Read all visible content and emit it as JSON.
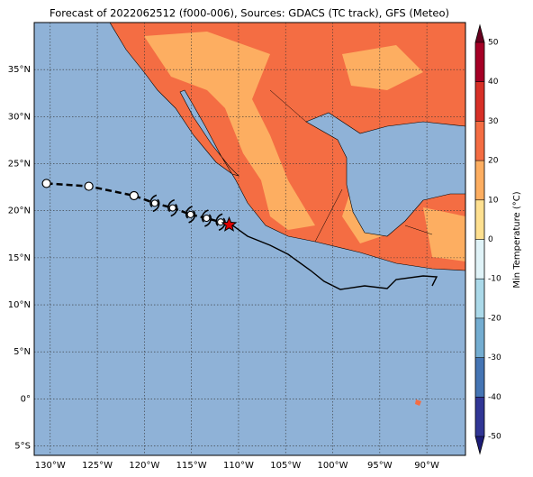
{
  "map": {
    "title": "Forecast of 2022062512 (f000-006), Sources: GDACS (TC track), GFS (Meteo)",
    "xlim": [
      -131.7,
      -85.9
    ],
    "ylim": [
      -6,
      40
    ],
    "xticks": [
      {
        "value": -130,
        "label": "130°W"
      },
      {
        "value": -125,
        "label": "125°W"
      },
      {
        "value": -120,
        "label": "120°W"
      },
      {
        "value": -115,
        "label": "115°W"
      },
      {
        "value": -110,
        "label": "110°W"
      },
      {
        "value": -105,
        "label": "105°W"
      },
      {
        "value": -100,
        "label": "100°W"
      },
      {
        "value": -95,
        "label": "95°W"
      },
      {
        "value": -90,
        "label": "90°W"
      }
    ],
    "yticks": [
      {
        "value": 35,
        "label": "35°N"
      },
      {
        "value": 30,
        "label": "30°N"
      },
      {
        "value": 25,
        "label": "25°N"
      },
      {
        "value": 20,
        "label": "20°N"
      },
      {
        "value": 15,
        "label": "15°N"
      },
      {
        "value": 10,
        "label": "10°N"
      },
      {
        "value": 5,
        "label": "5°N"
      },
      {
        "value": 0,
        "label": "0°"
      },
      {
        "value": -5,
        "label": "5°S"
      }
    ],
    "grid": true,
    "past_track": {
      "lon": [
        -130.4,
        -125.9,
        -121.1
      ],
      "lat": [
        22.9,
        22.6,
        21.6
      ]
    },
    "forecast_track": {
      "lon": [
        -118.9,
        -117.0,
        -115.1,
        -113.4,
        -111.9
      ],
      "lat": [
        20.8,
        20.3,
        19.6,
        19.2,
        18.8
      ]
    },
    "current_position": {
      "lon": -111.0,
      "lat": 18.5
    }
  },
  "colorbar": {
    "label": "Min Temperature (°C)",
    "lim": [
      -50,
      50
    ],
    "ticks": [
      50,
      40,
      30,
      20,
      10,
      0,
      -10,
      -20,
      -30,
      -40,
      -50
    ],
    "colors": [
      "#313695",
      "#4575b4",
      "#74add1",
      "#abd9e9",
      "#e0f3f8",
      "#fee090",
      "#fdae61",
      "#f46d43",
      "#d73027",
      "#a50026"
    ],
    "under_color": "#1c1c78",
    "over_color": "#67001f"
  }
}
